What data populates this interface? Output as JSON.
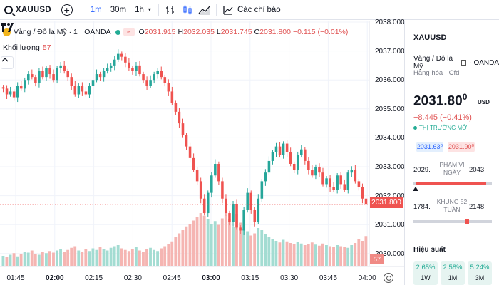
{
  "toolbar": {
    "symbol": "XAUUSD",
    "intervals": [
      {
        "label": "1m",
        "active": true
      },
      {
        "label": "30m",
        "active": false
      },
      {
        "label": "1h",
        "active": false
      }
    ],
    "indicators_label": "Các chỉ báo",
    "icons": [
      "search-icon",
      "plus-circle-icon",
      "chevron-down-icon",
      "bar-style-icon",
      "candle-style-icon",
      "area-style-icon",
      "indicators-icon"
    ]
  },
  "legend": {
    "title": "Vàng / Đô la Mỹ · 1 · OANDA",
    "badge": "≈",
    "open_key": "O",
    "open": "2031.915",
    "high_key": "H",
    "high": "2032.035",
    "low_key": "L",
    "low": "2031.745",
    "close_key": "C",
    "close": "2031.800",
    "change": "−0.115 (−0.01%)"
  },
  "volume": {
    "label": "Khối lượng",
    "value": "57"
  },
  "price_axis": {
    "ticks": [
      "2038.000",
      "2037.000",
      "2036.000",
      "2035.000",
      "2034.000",
      "2033.000",
      "2032.000",
      "2031.000",
      "2030.000"
    ],
    "current_price": "2031.800",
    "current_volume": "57"
  },
  "time_axis": {
    "ticks": [
      {
        "label": "01:45",
        "bold": false
      },
      {
        "label": "02:00",
        "bold": true
      },
      {
        "label": "02:15",
        "bold": false
      },
      {
        "label": "02:30",
        "bold": false
      },
      {
        "label": "02:45",
        "bold": false
      },
      {
        "label": "03:00",
        "bold": true
      },
      {
        "label": "03:15",
        "bold": false
      },
      {
        "label": "03:30",
        "bold": false
      },
      {
        "label": "03:45",
        "bold": false
      },
      {
        "label": "04:00",
        "bold": false
      }
    ]
  },
  "chart_data": {
    "type": "candlestick",
    "ylim": [
      2030,
      2038
    ],
    "xlabel": "",
    "ylabel": "",
    "close_path": [
      2035.8,
      2035.6,
      2035.7,
      2035.5,
      2035.9,
      2035.8,
      2036.1,
      2036.3,
      2036.2,
      2036.0,
      2036.4,
      2036.2,
      2036.5,
      2036.3,
      2036.1,
      2036.5,
      2036.6,
      2036.4,
      2036.2,
      2035.9,
      2035.6,
      2035.9,
      2035.7,
      2035.6,
      2035.9,
      2036.1,
      2036.3,
      2036.2,
      2036.4,
      2036.5,
      2036.6,
      2036.8,
      2037.0,
      2036.9,
      2036.7,
      2036.5,
      2036.4,
      2036.6,
      2036.3,
      2036.1,
      2035.9,
      2036.1,
      2036.3,
      2036.4,
      2036.2,
      2036.0,
      2035.7,
      2035.3,
      2035.0,
      2034.6,
      2034.2,
      2033.8,
      2033.4,
      2033.0,
      2032.6,
      2032.0,
      2031.5,
      2032.2,
      2032.8,
      2033.2,
      2032.6,
      2032.0,
      2031.5,
      2031.2,
      2031.8,
      2031.0,
      2030.9,
      2031.6,
      2032.2,
      2031.6,
      2031.2,
      2032.0,
      2032.6,
      2032.9,
      2033.3,
      2033.6,
      2033.8,
      2033.5,
      2033.9,
      2033.6,
      2033.2,
      2033.0,
      2033.5,
      2033.7,
      2033.3,
      2033.0,
      2032.8,
      2033.1,
      2032.9,
      2032.5,
      2032.7,
      2032.4,
      2032.3,
      2032.8,
      2032.5,
      2032.3,
      2032.9,
      2033.0,
      2032.6,
      2032.4,
      2032.0,
      2031.8
    ],
    "volume_path": [
      20,
      18,
      22,
      25,
      19,
      23,
      28,
      26,
      30,
      24,
      22,
      27,
      25,
      29,
      26,
      30,
      33,
      28,
      31,
      35,
      38,
      30,
      27,
      32,
      29,
      34,
      31,
      36,
      33,
      30,
      35,
      38,
      40,
      34,
      31,
      29,
      33,
      36,
      30,
      28,
      32,
      35,
      31,
      29,
      34,
      38,
      42,
      47,
      55,
      62,
      68,
      75,
      80,
      86,
      92,
      100,
      95,
      88,
      80,
      85,
      78,
      90,
      96,
      88,
      74,
      98,
      82,
      70,
      66,
      58,
      62,
      72,
      68,
      60,
      55,
      52,
      48,
      45,
      50,
      47,
      44,
      42,
      46,
      43,
      40,
      42,
      45,
      41,
      39,
      43,
      40,
      38,
      36,
      40,
      38,
      36,
      35,
      40,
      44,
      52,
      48,
      57
    ],
    "last_close": 2031.8
  },
  "panel": {
    "symbol": "XAUUSD",
    "name": "Vàng / Đô la Mỹ",
    "exchange": "OANDA",
    "type": "Hàng hóa · Cfd",
    "price_main": "2031.80",
    "price_sup": "0",
    "currency": "USD",
    "change": "−8.445 (−0.41%)",
    "market_status": "THỊ TRƯỜNG MỞ",
    "bid": "2031.63⁰",
    "ask": "2031.90⁰",
    "day_range": {
      "low": "2029.",
      "high": "2043.",
      "label": "PHẠM VI NGÀY",
      "position": 0.03
    },
    "week52_range": {
      "low": "1784.",
      "high": "2148.",
      "label": "KHUNG 52 TUẦN",
      "position": 0.68
    },
    "performance_title": "Hiệu suất",
    "performance": [
      {
        "value": "2.65%",
        "period": "1W"
      },
      {
        "value": "2.58%",
        "period": "1M"
      },
      {
        "value": "5.24%",
        "period": "3M"
      }
    ],
    "colors": {
      "up": "#22ab94",
      "down": "#ef5350",
      "accent": "#2962ff"
    }
  }
}
